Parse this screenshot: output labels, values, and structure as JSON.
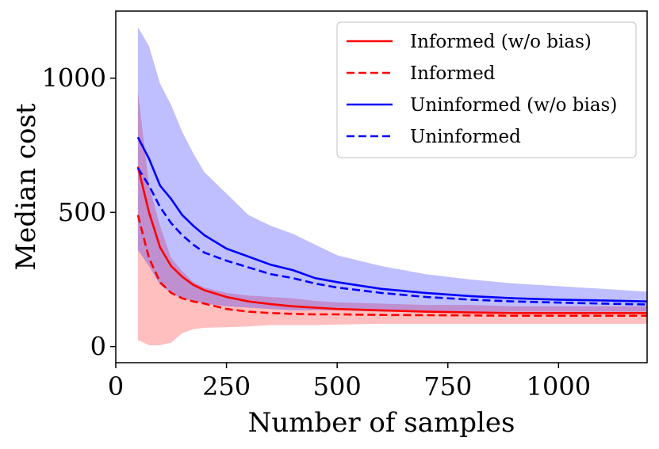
{
  "chart_data": {
    "type": "line",
    "title": "",
    "xlabel": "Number of samples",
    "ylabel": "Median cost",
    "xlim": [
      0,
      1200
    ],
    "ylim": [
      -60,
      1250
    ],
    "xticks": [
      0,
      250,
      500,
      750,
      1000
    ],
    "xtick_labels": [
      "0",
      "250",
      "500",
      "750",
      "1000"
    ],
    "yticks": [
      0,
      500,
      1000
    ],
    "ytick_labels": [
      "0",
      "500",
      "1000"
    ],
    "grid": false,
    "legend_position": "top-right",
    "x": [
      50,
      75,
      100,
      125,
      150,
      175,
      200,
      250,
      300,
      350,
      400,
      450,
      500,
      600,
      700,
      800,
      900,
      1000,
      1100,
      1200
    ],
    "bands": [
      {
        "name": "Informed band",
        "color": "#ff0000",
        "opacity": 0.25,
        "lower": [
          25,
          5,
          5,
          15,
          50,
          65,
          70,
          72,
          75,
          80,
          80,
          80,
          82,
          85,
          85,
          85,
          85,
          85,
          85,
          85
        ],
        "upper": [
          950,
          600,
          450,
          330,
          280,
          240,
          220,
          200,
          190,
          185,
          180,
          170,
          165,
          160,
          155,
          155,
          150,
          150,
          150,
          150
        ]
      },
      {
        "name": "Uninformed band",
        "color": "#0000ff",
        "opacity": 0.25,
        "lower": [
          360,
          300,
          230,
          200,
          180,
          170,
          160,
          150,
          145,
          140,
          135,
          135,
          135,
          130,
          130,
          130,
          130,
          130,
          130,
          130
        ],
        "upper": [
          1190,
          1120,
          980,
          900,
          800,
          720,
          650,
          570,
          490,
          450,
          420,
          380,
          340,
          300,
          270,
          250,
          235,
          225,
          215,
          205
        ]
      }
    ],
    "series": [
      {
        "name": "Informed (w/o bias)",
        "color": "#ff0000",
        "dash": "solid",
        "values": [
          670,
          500,
          370,
          300,
          260,
          230,
          210,
          185,
          168,
          158,
          150,
          145,
          140,
          135,
          130,
          127,
          125,
          125,
          125,
          125
        ]
      },
      {
        "name": "Informed",
        "color": "#ff0000",
        "dash": "dashed",
        "values": [
          490,
          330,
          240,
          200,
          180,
          168,
          160,
          140,
          130,
          125,
          122,
          120,
          120,
          118,
          117,
          116,
          115,
          115,
          115,
          115
        ]
      },
      {
        "name": "Uninformed (w/o bias)",
        "color": "#0000ff",
        "dash": "solid",
        "values": [
          780,
          700,
          600,
          550,
          490,
          450,
          415,
          365,
          335,
          305,
          285,
          255,
          240,
          215,
          200,
          188,
          180,
          175,
          172,
          168
        ]
      },
      {
        "name": "Uninformed",
        "color": "#0000ff",
        "dash": "dashed",
        "values": [
          665,
          600,
          520,
          460,
          415,
          380,
          350,
          320,
          295,
          270,
          255,
          235,
          220,
          200,
          185,
          175,
          168,
          164,
          160,
          157
        ]
      }
    ]
  }
}
